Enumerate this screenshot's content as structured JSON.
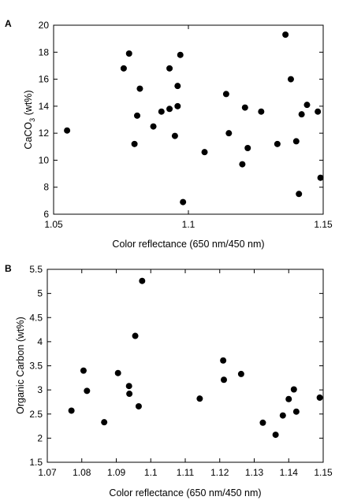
{
  "chart_data": [
    {
      "type": "scatter",
      "panel_label": "A",
      "xlabel": "Color reflectance (650 nm/450 nm)",
      "ylabel": "CaCO3 (wt%)",
      "ylabel_main": "CaCO",
      "ylabel_sub": "3",
      "ylabel_tail": " (wt%)",
      "xlim": [
        1.05,
        1.15
      ],
      "ylim": [
        6,
        20
      ],
      "xticks": [
        1.05,
        1.1,
        1.15
      ],
      "xtick_labels": [
        "1.05",
        "1.1",
        "1.15"
      ],
      "yticks": [
        6,
        8,
        10,
        12,
        14,
        16,
        18,
        20
      ],
      "ytick_labels": [
        "6",
        "8",
        "10",
        "12",
        "14",
        "16",
        "18",
        "20"
      ],
      "grid": false,
      "points": [
        {
          "x": 1.055,
          "y": 12.2
        },
        {
          "x": 1.076,
          "y": 16.8
        },
        {
          "x": 1.078,
          "y": 17.9
        },
        {
          "x": 1.08,
          "y": 11.2
        },
        {
          "x": 1.081,
          "y": 13.3
        },
        {
          "x": 1.082,
          "y": 15.3
        },
        {
          "x": 1.087,
          "y": 12.5
        },
        {
          "x": 1.09,
          "y": 13.6
        },
        {
          "x": 1.093,
          "y": 13.8
        },
        {
          "x": 1.093,
          "y": 16.8
        },
        {
          "x": 1.095,
          "y": 11.8
        },
        {
          "x": 1.096,
          "y": 14.0
        },
        {
          "x": 1.096,
          "y": 15.5
        },
        {
          "x": 1.097,
          "y": 17.8
        },
        {
          "x": 1.098,
          "y": 6.9
        },
        {
          "x": 1.106,
          "y": 10.6
        },
        {
          "x": 1.114,
          "y": 14.9
        },
        {
          "x": 1.115,
          "y": 12.0
        },
        {
          "x": 1.12,
          "y": 9.7
        },
        {
          "x": 1.121,
          "y": 13.9
        },
        {
          "x": 1.122,
          "y": 10.9
        },
        {
          "x": 1.127,
          "y": 13.6
        },
        {
          "x": 1.133,
          "y": 11.2
        },
        {
          "x": 1.136,
          "y": 19.3
        },
        {
          "x": 1.138,
          "y": 16.0
        },
        {
          "x": 1.14,
          "y": 11.4
        },
        {
          "x": 1.141,
          "y": 7.5
        },
        {
          "x": 1.142,
          "y": 13.4
        },
        {
          "x": 1.144,
          "y": 14.1
        },
        {
          "x": 1.148,
          "y": 13.6
        },
        {
          "x": 1.149,
          "y": 8.7
        }
      ]
    },
    {
      "type": "scatter",
      "panel_label": "B",
      "xlabel": "Color reflectance (650 nm/450 nm)",
      "ylabel": "Organic Carbon (wt%)",
      "xlim": [
        1.07,
        1.15
      ],
      "ylim": [
        1.5,
        5.5
      ],
      "xticks": [
        1.07,
        1.08,
        1.09,
        1.1,
        1.11,
        1.12,
        1.13,
        1.14,
        1.15
      ],
      "xtick_labels": [
        "1.07",
        "1.08",
        "1.09",
        "1.1",
        "1.11",
        "1.12",
        "1.13",
        "1.14",
        "1.15"
      ],
      "yticks": [
        1.5,
        2,
        2.5,
        3,
        3.5,
        4,
        4.5,
        5,
        5.5
      ],
      "ytick_labels": [
        "1.5",
        "2",
        "2.5",
        "3",
        "3.5",
        "4",
        "4.5",
        "5",
        "5.5"
      ],
      "grid": false,
      "points": [
        {
          "x": 1.077,
          "y": 2.57
        },
        {
          "x": 1.0805,
          "y": 3.4
        },
        {
          "x": 1.0815,
          "y": 2.98
        },
        {
          "x": 1.0865,
          "y": 2.33
        },
        {
          "x": 1.0905,
          "y": 3.35
        },
        {
          "x": 1.0937,
          "y": 3.08
        },
        {
          "x": 1.0938,
          "y": 2.92
        },
        {
          "x": 1.0955,
          "y": 4.12
        },
        {
          "x": 1.0965,
          "y": 2.66
        },
        {
          "x": 1.0975,
          "y": 5.26
        },
        {
          "x": 1.1142,
          "y": 2.82
        },
        {
          "x": 1.121,
          "y": 3.61
        },
        {
          "x": 1.1212,
          "y": 3.21
        },
        {
          "x": 1.1262,
          "y": 3.33
        },
        {
          "x": 1.1325,
          "y": 2.32
        },
        {
          "x": 1.1362,
          "y": 2.07
        },
        {
          "x": 1.1383,
          "y": 2.47
        },
        {
          "x": 1.14,
          "y": 2.81
        },
        {
          "x": 1.1415,
          "y": 3.01
        },
        {
          "x": 1.1422,
          "y": 2.55
        },
        {
          "x": 1.149,
          "y": 2.84
        }
      ]
    }
  ]
}
